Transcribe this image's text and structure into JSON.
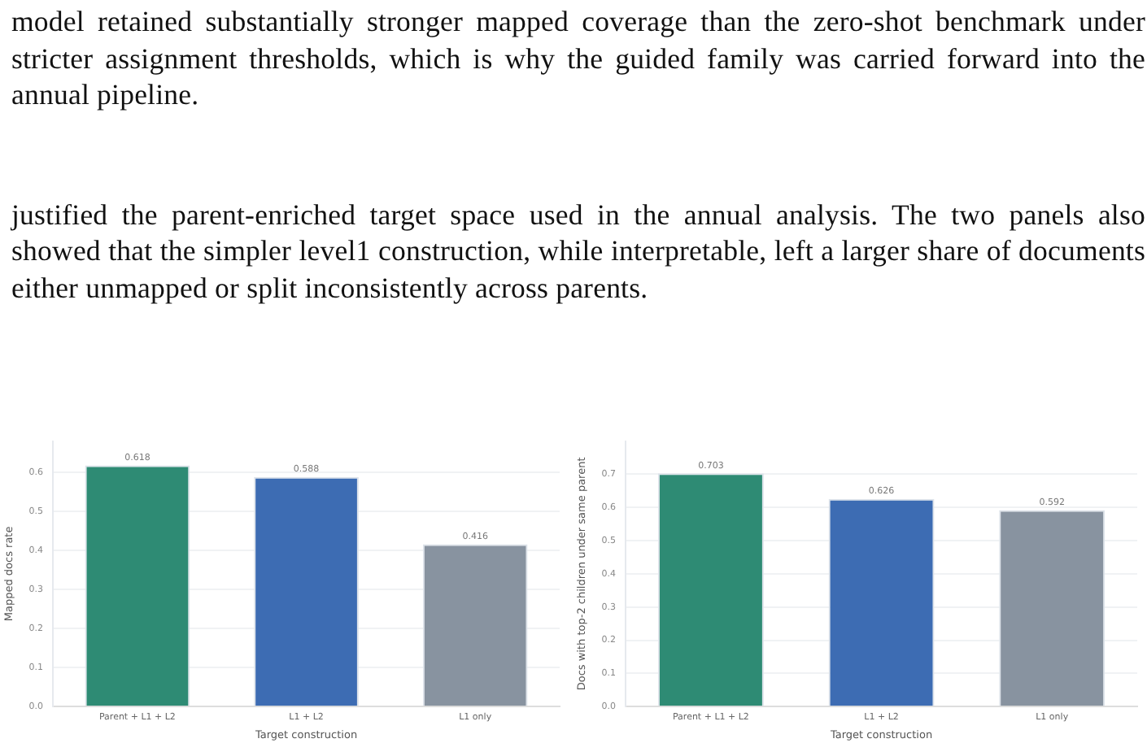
{
  "chart_data": [
    {
      "type": "bar",
      "annotations": [
        "model retained substantially stronger mapped coverage than the zero-shot benchmark under stricter assignment thresholds, which is why the guided family was carried forward into the annual pipeline.",
        "justified the parent-enriched target space used in the annual analysis. The two panels also showed that the simpler level1 construction, while interpretable, left a larger share of documents either unmapped or split inconsistently across parents."
      ],
      "categories": [
        "Parent + L1 + L2",
        "L1 + L2",
        "L1 only"
      ],
      "values": [
        0.618,
        0.588,
        0.416
      ],
      "colors": [
        "#2e8b74",
        "#3d6cb3",
        "#8893a0"
      ],
      "xlabel": "Target construction",
      "ylabel": "Mapped docs rate",
      "ylim": [
        0,
        0.68
      ],
      "yticks": [
        {
          "value": 0,
          "label": "0.0"
        },
        0.1,
        0.2,
        0.3,
        0.4,
        0.5,
        0.6
      ],
      "grid": "y",
      "data_labels": true,
      "legend": false
    },
    {
      "type": "bar",
      "categories": [
        "Parent + L1 + L2",
        "L1 + L2",
        "L1 only"
      ],
      "values": [
        0.703,
        0.626,
        0.592
      ],
      "colors": [
        "#2e8b74",
        "#3d6cb3",
        "#8893a0"
      ],
      "xlabel": "Target construction",
      "ylabel": "Docs with top-2 children under same parent",
      "ylim": [
        0,
        0.8
      ],
      "yticks": [
        {
          "value": 0,
          "label": "0.0"
        },
        0.1,
        0.2,
        0.3,
        0.4,
        0.5,
        0.6,
        0.7
      ],
      "grid": "y",
      "data_labels": true,
      "legend": false
    }
  ]
}
